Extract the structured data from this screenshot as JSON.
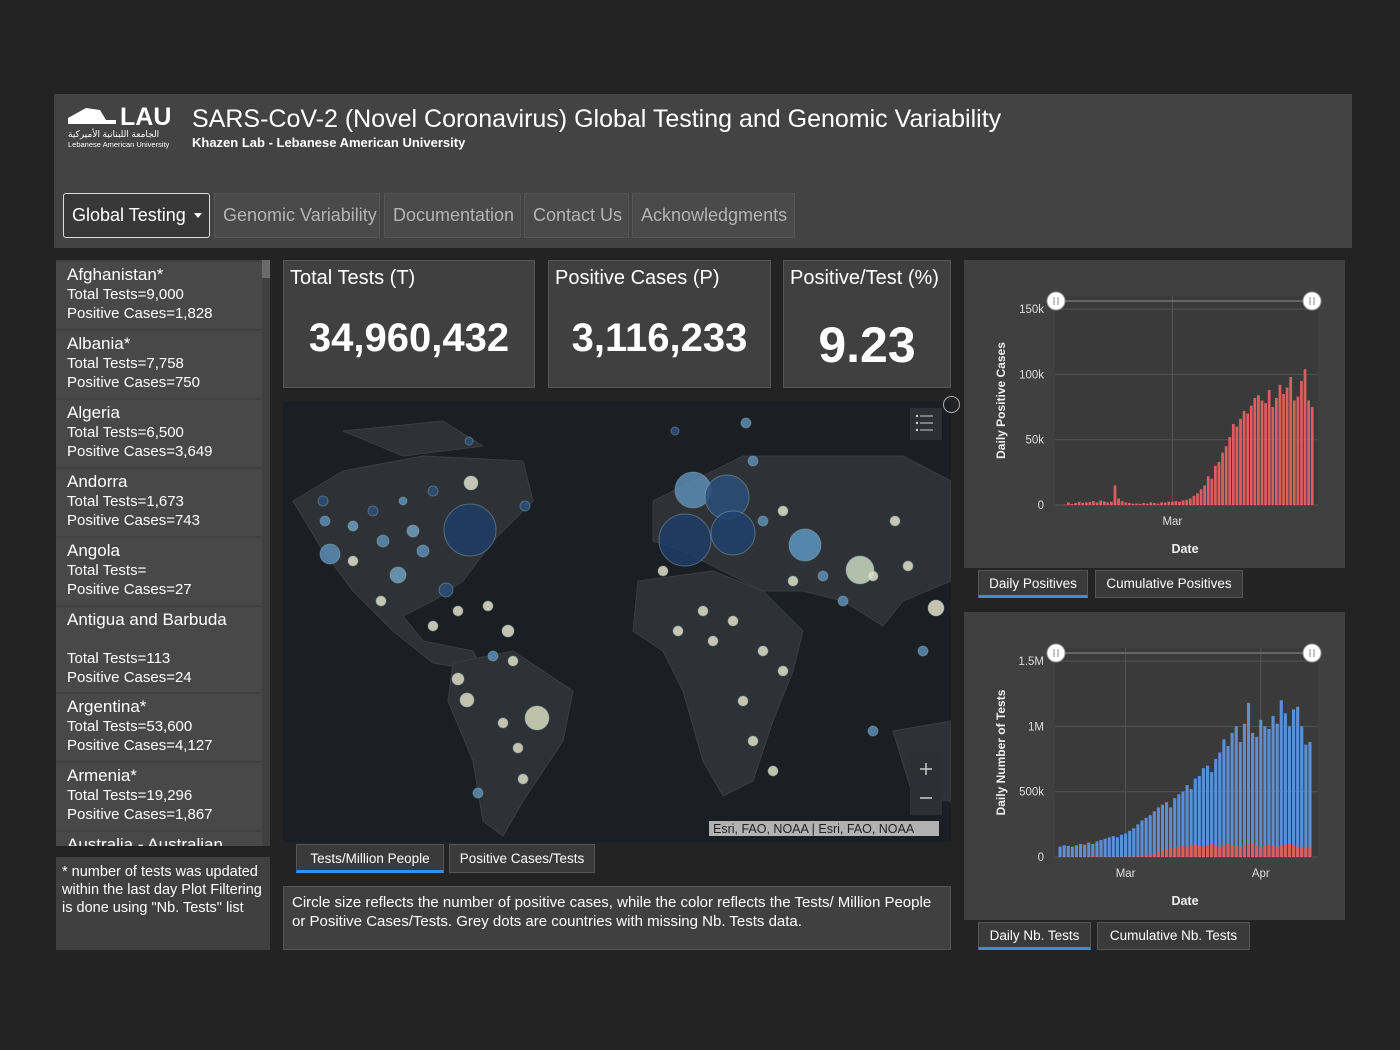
{
  "header": {
    "logo_text": "LAU",
    "logo_arabic": "الجامعة اللبنانية الأميركية",
    "logo_subtitle": "Lebanese American University",
    "title": "SARS-CoV-2 (Novel Coronavirus) Global Testing and Genomic Variability",
    "subtitle": "Khazen Lab - Lebanese American University"
  },
  "nav": [
    "Global Testing",
    "Genomic Variability",
    "Documentation",
    "Contact Us",
    "Acknowledgments"
  ],
  "countries": [
    {
      "name": "Afghanistan*",
      "tests": "Total Tests=9,000",
      "positives": "Positive Cases=1,828"
    },
    {
      "name": "Albania*",
      "tests": "Total Tests=7,758",
      "positives": "Positive Cases=750"
    },
    {
      "name": "Algeria",
      "tests": "Total Tests=6,500",
      "positives": "Positive Cases=3,649"
    },
    {
      "name": "Andorra",
      "tests": "Total Tests=1,673",
      "positives": "Positive Cases=743"
    },
    {
      "name": "Angola",
      "tests": "Total Tests=",
      "positives": "Positive Cases=27"
    },
    {
      "name": "Antigua and Barbuda",
      "tests": "Total Tests=113",
      "positives": "Positive Cases=24"
    },
    {
      "name": "Argentina*",
      "tests": "Total Tests=53,600",
      "positives": "Positive Cases=4,127"
    },
    {
      "name": "Armenia*",
      "tests": "Total Tests=19,296",
      "positives": "Positive Cases=1,867"
    },
    {
      "name": "Australia - Australian"
    }
  ],
  "note": "* number of tests was updated within the last day Plot Filtering is done using \"Nb. Tests\" list",
  "stats": [
    {
      "label": "Total Tests (T)",
      "value": "34,960,432"
    },
    {
      "label": "Positive Cases (P)",
      "value": "3,116,233"
    },
    {
      "label": "Positive/Test (%)",
      "value": "9.23"
    }
  ],
  "map": {
    "attribution": "Esri, FAO, NOAA | Esri, FAO, NOAA",
    "tabs": [
      "Tests/Million People",
      "Positive Cases/Tests"
    ],
    "caption": "Circle size reflects the number of positive cases, while the color reflects the Tests/ Million People or Positive Cases/Tests. Grey dots are countries with missing Nb. Tests data."
  },
  "chart_data": [
    {
      "type": "bar",
      "ylabel": "Daily Positive Cases",
      "xlabel": "Date",
      "ylim": [
        0,
        160000
      ],
      "yticks": [
        0,
        {
          "value": 50000,
          "label": "50k"
        },
        {
          "value": 100000,
          "label": "100k"
        },
        {
          "value": 150000,
          "label": "150k"
        }
      ],
      "xticks": [
        {
          "value": 30,
          "label": "Mar"
        }
      ],
      "grid": true,
      "color": "#d9605f",
      "values": [
        400,
        2000,
        800,
        1500,
        2500,
        1700,
        2000,
        2300,
        3000,
        2000,
        3500,
        2800,
        2000,
        2500,
        15000,
        5000,
        3000,
        2000,
        1500,
        1000,
        1200,
        800,
        1500,
        1000,
        2000,
        1500,
        1000,
        2000,
        1800,
        2500,
        2500,
        3000,
        2500,
        3500,
        4000,
        5000,
        7000,
        9000,
        12000,
        15000,
        22000,
        20000,
        30000,
        33000,
        40000,
        45000,
        52000,
        62000,
        60000,
        66000,
        72000,
        70000,
        76000,
        82000,
        84000,
        80000,
        78000,
        88000,
        75000,
        82000,
        92000,
        85000,
        90000,
        98000,
        80000,
        83000,
        95000,
        104000,
        80000,
        75000
      ],
      "tabs": [
        "Daily Positives",
        "Cumulative Positives"
      ]
    },
    {
      "type": "bar",
      "ylabel": "Daily Number of Tests",
      "xlabel": "Date",
      "ylim": [
        0,
        1600000
      ],
      "yticks": [
        0,
        {
          "value": 500000,
          "label": "500k"
        },
        {
          "value": 1000000,
          "label": "1M"
        },
        {
          "value": 1500000,
          "label": "1.5M"
        }
      ],
      "xticks": [
        {
          "value": 16,
          "label": "Mar"
        },
        {
          "value": 49,
          "label": "Apr"
        }
      ],
      "grid": true,
      "series": [
        {
          "color": "#5b8fd6",
          "values": [
            80000,
            90000,
            85000,
            80000,
            90000,
            100000,
            95000,
            110000,
            100000,
            120000,
            130000,
            140000,
            150000,
            160000,
            150000,
            170000,
            180000,
            200000,
            220000,
            250000,
            280000,
            300000,
            320000,
            350000,
            380000,
            400000,
            420000,
            380000,
            450000,
            480000,
            500000,
            550000,
            520000,
            600000,
            620000,
            680000,
            700000,
            650000,
            750000,
            800000,
            900000,
            850000,
            950000,
            1000000,
            880000,
            1020000,
            1180000,
            950000,
            920000,
            1050000,
            1000000,
            980000,
            1080000,
            1020000,
            1200000,
            1100000,
            1000000,
            1130000,
            1150000,
            1000000,
            860000,
            880000
          ]
        },
        {
          "color": "#d9605f",
          "values": [
            1000,
            1500,
            1200,
            1800,
            2000,
            2500,
            1500,
            2000,
            15000,
            4000,
            3000,
            2000,
            1500,
            1200,
            1800,
            2000,
            2500,
            3000,
            3500,
            5000,
            8000,
            12000,
            20000,
            30000,
            40000,
            50000,
            60000,
            70000,
            75000,
            80000,
            85000,
            80000,
            90000,
            95000,
            85000,
            80000,
            90000,
            100000,
            85000,
            80000,
            95000,
            100000,
            90000,
            85000,
            80000,
            90000,
            95000,
            100000,
            85000,
            80000,
            90000,
            95000,
            85000,
            80000,
            90000,
            95000,
            100000,
            85000,
            80000,
            75000,
            70000,
            80000
          ]
        }
      ],
      "tabs": [
        "Daily Nb. Tests",
        "Cumulative Nb. Tests"
      ]
    }
  ]
}
